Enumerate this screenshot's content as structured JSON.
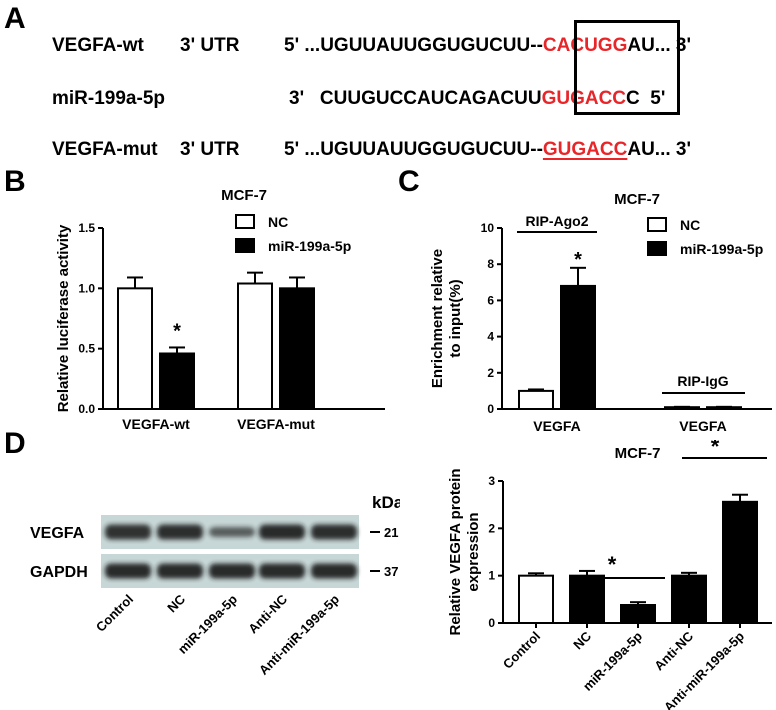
{
  "panels": {
    "a": "A",
    "b": "B",
    "c": "C",
    "d": "D"
  },
  "sequences": {
    "wt": {
      "name": "VEGFA-wt",
      "region": "3' UTR",
      "prefix": "5' ...UGUUAUUGGUGUCUU--",
      "site": "CACUGG",
      "suffix": "AU... 3'"
    },
    "mir": {
      "name": "miR-199a-5p",
      "prefix": "3'   CUUGUCCAUCAGACUU",
      "site": "GUGACC",
      "suffix": "C  5'"
    },
    "mut": {
      "name": "VEGFA-mut",
      "region": "3' UTR",
      "prefix": "5' ...UGUUAUUGGUGUCUU--",
      "site": "GUGACC",
      "suffix": "AU... 3'"
    }
  },
  "colors": {
    "site": "#e8262a",
    "bar_nc": "#ffffff",
    "bar_mir": "#000000",
    "line": "#000000"
  },
  "chart_data": [
    {
      "id": "B",
      "type": "bar",
      "title": "MCF-7",
      "ylabel": "Relative luciferase activity",
      "ylim": [
        0,
        1.5
      ],
      "yticks": [
        "0.0",
        "0.5",
        "1.0",
        "1.5"
      ],
      "categories": [
        "VEGFA-wt",
        "VEGFA-mut"
      ],
      "series": [
        {
          "name": "NC",
          "values": [
            1.0,
            1.04
          ],
          "errors": [
            0.09,
            0.09
          ]
        },
        {
          "name": "miR-199a-5p",
          "values": [
            0.46,
            1.0
          ],
          "errors": [
            0.05,
            0.09
          ]
        }
      ],
      "significance": [
        "*"
      ],
      "legend": "top-right"
    },
    {
      "id": "C",
      "type": "bar",
      "title": "MCF-7",
      "ylabel": "Enrichment relative to input(%)",
      "ylabel_lines": [
        "Enrichment relative",
        "to input(%)"
      ],
      "ylim": [
        0,
        10
      ],
      "yticks": [
        "0",
        "2",
        "4",
        "6",
        "8",
        "10"
      ],
      "categories": [
        "VEGFA",
        "VEGFA"
      ],
      "groups": [
        "RIP-Ago2",
        "RIP-IgG"
      ],
      "series": [
        {
          "name": "NC",
          "values": [
            1.0,
            0.1
          ],
          "errors": [
            0.08,
            0.02
          ]
        },
        {
          "name": "miR-199a-5p",
          "values": [
            6.8,
            0.1
          ],
          "errors": [
            1.0,
            0.02
          ]
        }
      ],
      "significance": [
        "*"
      ],
      "legend": "top-right"
    },
    {
      "id": "D",
      "type": "bar",
      "title": "MCF-7",
      "ylabel": "Relative VEGFA protein expression",
      "ylabel_lines": [
        "Relative VEGFA protein",
        "expression"
      ],
      "ylim": [
        0,
        3
      ],
      "yticks": [
        "0",
        "1",
        "2",
        "3"
      ],
      "categories": [
        "Control",
        "NC",
        "miR-199a-5p",
        "Anti-NC",
        "Anti-miR-199a-5p"
      ],
      "values": [
        1.0,
        1.0,
        0.38,
        1.0,
        2.56
      ],
      "errors": [
        0.05,
        0.1,
        0.06,
        0.06,
        0.15
      ],
      "fills": [
        "white",
        "black",
        "black",
        "black",
        "black"
      ],
      "significance": [
        "*",
        "*"
      ]
    }
  ],
  "blot": {
    "unit": "kDa",
    "rows": [
      {
        "name": "VEGFA",
        "mw": "21",
        "intensity": [
          0.88,
          0.9,
          0.65,
          0.92,
          0.9
        ]
      },
      {
        "name": "GAPDH",
        "mw": "37",
        "intensity": [
          0.92,
          0.92,
          0.92,
          0.92,
          0.92
        ]
      }
    ],
    "lanes": [
      "Control",
      "NC",
      "miR-199a-5p",
      "Anti-NC",
      "Anti-miR-199a-5p"
    ]
  }
}
